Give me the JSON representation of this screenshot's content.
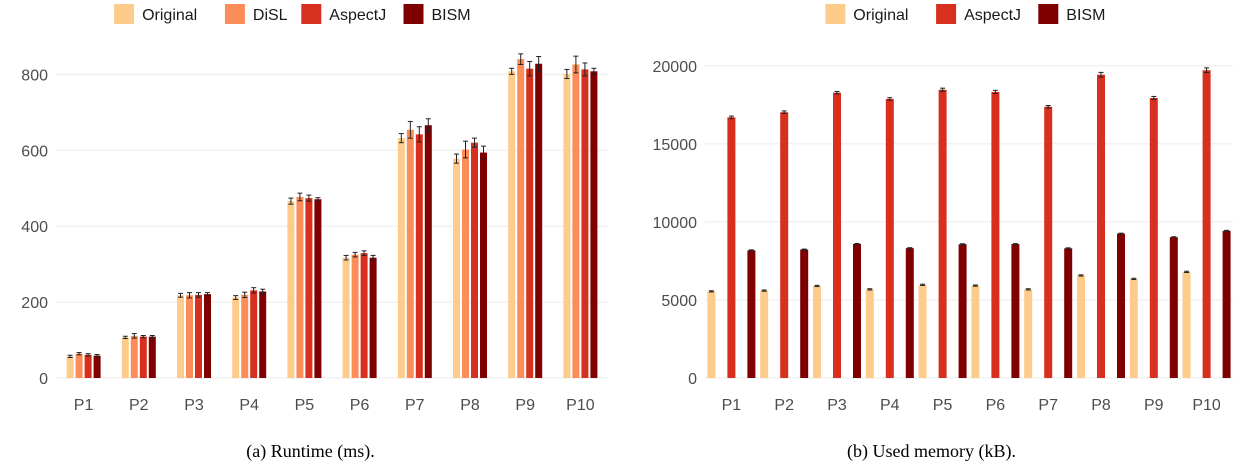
{
  "chart_data": [
    {
      "type": "bar",
      "caption": "(a) Runtime (ms).",
      "categories": [
        "P1",
        "P2",
        "P3",
        "P4",
        "P5",
        "P6",
        "P7",
        "P8",
        "P9",
        "P10"
      ],
      "ylim": [
        0,
        880
      ],
      "yticks": [
        0,
        200,
        400,
        600,
        800
      ],
      "grid": true,
      "legend_position": "top",
      "series": [
        {
          "name": "Original",
          "color": "#fdcc8a",
          "values": [
            57,
            107,
            218,
            212,
            466,
            317,
            632,
            578,
            808,
            801
          ],
          "errors": [
            3,
            3,
            5,
            5,
            8,
            6,
            12,
            12,
            8,
            12
          ]
        },
        {
          "name": "DiSL",
          "color": "#fc8d59",
          "values": [
            64,
            111,
            218,
            219,
            477,
            325,
            654,
            602,
            840,
            826
          ],
          "errors": [
            3,
            6,
            7,
            7,
            10,
            6,
            22,
            22,
            14,
            22
          ]
        },
        {
          "name": "AspectJ",
          "color": "#d7301f",
          "values": [
            61,
            109,
            219,
            231,
            474,
            329,
            642,
            620,
            815,
            813
          ],
          "errors": [
            3,
            3,
            6,
            7,
            8,
            6,
            20,
            12,
            19,
            17
          ]
        },
        {
          "name": "BISM",
          "color": "#7f0000",
          "values": [
            59,
            109,
            221,
            228,
            471,
            317,
            666,
            594,
            828,
            808
          ],
          "errors": [
            3,
            3,
            4,
            6,
            4,
            6,
            17,
            17,
            19,
            8
          ]
        }
      ]
    },
    {
      "type": "bar",
      "caption": "(b) Used memory (kB).",
      "categories": [
        "P1",
        "P2",
        "P3",
        "P4",
        "P5",
        "P6",
        "P7",
        "P8",
        "P9",
        "P10"
      ],
      "ylim": [
        0,
        21400
      ],
      "yticks": [
        0,
        5000,
        10000,
        15000,
        20000
      ],
      "grid": true,
      "legend_position": "top",
      "series": [
        {
          "name": "Original",
          "color": "#fdcc8a",
          "values": [
            5550,
            5600,
            5900,
            5680,
            5970,
            5920,
            5680,
            6570,
            6350,
            6800
          ],
          "errors": [
            40,
            40,
            40,
            40,
            40,
            40,
            40,
            40,
            40,
            40
          ]
        },
        {
          "name": "AspectJ",
          "color": "#d7301f",
          "values": [
            16700,
            17030,
            18280,
            17880,
            18470,
            18330,
            17380,
            19430,
            17940,
            19720
          ],
          "errors": [
            80,
            80,
            80,
            80,
            100,
            100,
            80,
            150,
            100,
            150
          ]
        },
        {
          "name": "BISM",
          "color": "#7f0000",
          "values": [
            8180,
            8230,
            8590,
            8320,
            8570,
            8580,
            8310,
            9250,
            9020,
            9430
          ],
          "errors": [
            30,
            30,
            30,
            30,
            30,
            30,
            30,
            30,
            30,
            30
          ]
        }
      ]
    }
  ]
}
